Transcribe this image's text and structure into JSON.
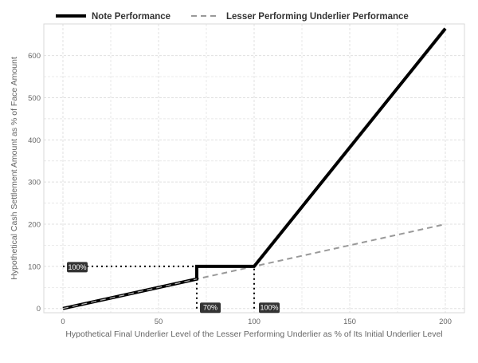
{
  "chart_data": {
    "type": "line",
    "title": "",
    "xlabel": "Hypothetical Final Underlier Level of the Lesser Performing Underlier as % of Its Initial Underlier Level",
    "ylabel": "Hypothetical Cash Settlement Amount as % of Face Amount",
    "xlim": [
      -10,
      210
    ],
    "ylim": [
      -10,
      675
    ],
    "xticks": [
      0,
      50,
      100,
      150,
      200
    ],
    "yticks": [
      0,
      100,
      200,
      300,
      400,
      500,
      600
    ],
    "grid": true,
    "legend_position": "top",
    "series": [
      {
        "name": "Note Performance",
        "style": "solid",
        "color": "#000000",
        "x": [
          0,
          70,
          70,
          100,
          200
        ],
        "y": [
          0,
          70,
          100,
          100,
          664
        ]
      },
      {
        "name": "Lesser Performing Underlier Performance",
        "style": "dashed",
        "color": "#999999",
        "x": [
          0,
          200
        ],
        "y": [
          0,
          200
        ]
      }
    ],
    "reference_lines": [
      {
        "label": "100%",
        "x": [
          0,
          100
        ],
        "y": [
          100,
          100
        ]
      },
      {
        "label": "70%",
        "x": [
          70,
          70
        ],
        "y": [
          0,
          70
        ]
      },
      {
        "label": "100%",
        "x": [
          100,
          100
        ],
        "y": [
          0,
          100
        ]
      }
    ]
  },
  "colors": {
    "note": "#000000",
    "underlier": "#999999",
    "grid": "#e0e0e0",
    "panel_border": "#d9d9d9",
    "label_bg": "#333333"
  }
}
